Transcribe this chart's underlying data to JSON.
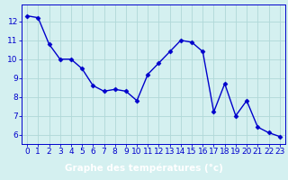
{
  "x": [
    0,
    1,
    2,
    3,
    4,
    5,
    6,
    7,
    8,
    9,
    10,
    11,
    12,
    13,
    14,
    15,
    16,
    17,
    18,
    19,
    20,
    21,
    22,
    23
  ],
  "y": [
    12.3,
    12.2,
    10.8,
    10.0,
    10.0,
    9.5,
    8.6,
    8.3,
    8.4,
    8.3,
    7.8,
    9.2,
    9.8,
    10.4,
    11.0,
    10.9,
    10.4,
    7.2,
    8.7,
    7.0,
    7.8,
    6.4,
    6.1,
    5.9
  ],
  "line_color": "#0000cc",
  "marker": "D",
  "marker_size": 2.5,
  "linewidth": 1.0,
  "bg_color": "#d4f0f0",
  "grid_color": "#b0d8d8",
  "xlabel": "Graphe des températures (°c)",
  "xlabel_color": "#0000cc",
  "xlabel_fontsize": 7.5,
  "tick_color": "#0000cc",
  "tick_fontsize": 6.5,
  "ylim": [
    5.5,
    12.9
  ],
  "yticks": [
    6,
    7,
    8,
    9,
    10,
    11,
    12
  ],
  "xlim": [
    -0.5,
    23.5
  ],
  "xticks": [
    0,
    1,
    2,
    3,
    4,
    5,
    6,
    7,
    8,
    9,
    10,
    11,
    12,
    13,
    14,
    15,
    16,
    17,
    18,
    19,
    20,
    21,
    22,
    23
  ],
  "bottom_bar_color": "#0000aa",
  "bottom_bar_height": 0.13
}
